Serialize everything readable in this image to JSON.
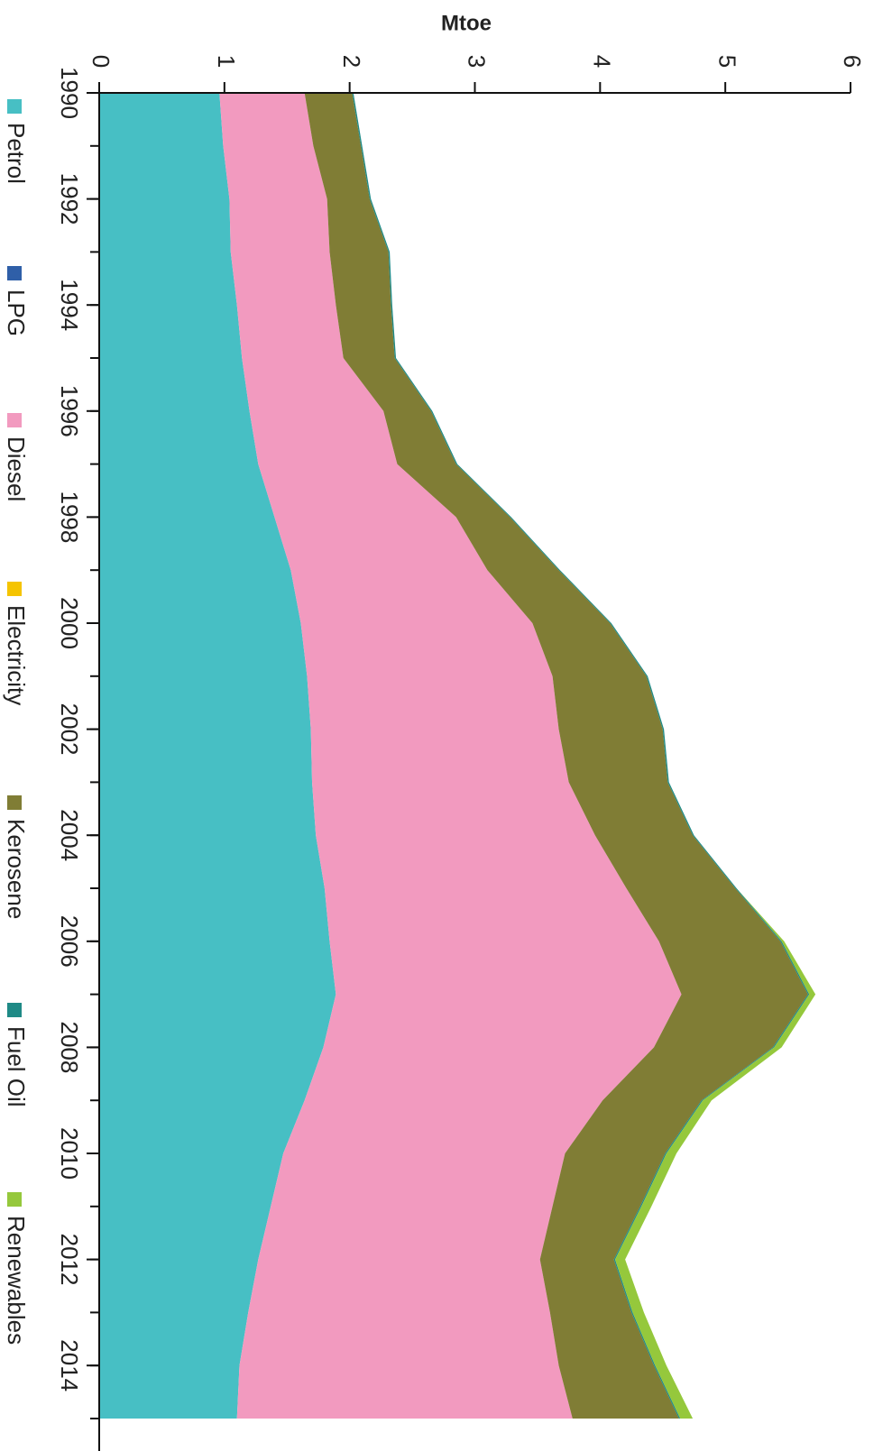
{
  "chart_data": {
    "type": "stacked_area",
    "y_label": "Mtoe",
    "x": [
      1990,
      1991,
      1992,
      1993,
      1994,
      1995,
      1996,
      1997,
      1998,
      1999,
      2000,
      2001,
      2002,
      2003,
      2004,
      2005,
      2006,
      2007,
      2008,
      2009,
      2010,
      2011,
      2012,
      2013,
      2014,
      2015
    ],
    "xlim": [
      1990,
      2015
    ],
    "xticks": [
      1990,
      1992,
      1994,
      1996,
      1998,
      2000,
      2002,
      2004,
      2006,
      2008,
      2010,
      2012,
      2014
    ],
    "ylim": [
      0,
      6
    ],
    "yticks": [
      0,
      1,
      2,
      3,
      4,
      5,
      6
    ],
    "orientation": "rotated",
    "legend": "left",
    "series": [
      {
        "name": "Petrol",
        "color": "#47bfc4",
        "values": [
          0.96,
          0.99,
          1.04,
          1.05,
          1.1,
          1.14,
          1.2,
          1.27,
          1.4,
          1.53,
          1.61,
          1.66,
          1.69,
          1.7,
          1.73,
          1.8,
          1.84,
          1.89,
          1.79,
          1.64,
          1.47,
          1.37,
          1.27,
          1.19,
          1.12,
          1.1
        ]
      },
      {
        "name": "LPG",
        "color": "#2f5fa8",
        "values": [
          0,
          0,
          0,
          0,
          0,
          0,
          0,
          0,
          0,
          0,
          0,
          0,
          0,
          0,
          0,
          0,
          0,
          0,
          0,
          0,
          0,
          0,
          0,
          0,
          0,
          0
        ]
      },
      {
        "name": "Diesel",
        "color": "#f29abf",
        "values": [
          0.68,
          0.72,
          0.78,
          0.79,
          0.79,
          0.81,
          1.07,
          1.11,
          1.45,
          1.57,
          1.85,
          1.96,
          1.98,
          2.05,
          2.23,
          2.41,
          2.63,
          2.76,
          2.64,
          2.38,
          2.25,
          2.25,
          2.25,
          2.41,
          2.55,
          2.68
        ]
      },
      {
        "name": "Electricity",
        "color": "#f5c400",
        "values": [
          0,
          0,
          0,
          0,
          0,
          0,
          0,
          0,
          0,
          0,
          0,
          0,
          0,
          0,
          0,
          0,
          0,
          0,
          0,
          0,
          0,
          0,
          0,
          0,
          0,
          0
        ]
      },
      {
        "name": "Kerosene",
        "color": "#807d35",
        "values": [
          0.38,
          0.38,
          0.34,
          0.47,
          0.44,
          0.41,
          0.38,
          0.47,
          0.43,
          0.57,
          0.62,
          0.75,
          0.83,
          0.79,
          0.78,
          0.87,
          0.97,
          1.01,
          0.95,
          0.79,
          0.8,
          0.7,
          0.59,
          0.65,
          0.76,
          0.85
        ]
      },
      {
        "name": "Fuel Oil",
        "color": "#1f8a86",
        "values": [
          0.01,
          0.01,
          0.01,
          0.01,
          0.01,
          0.01,
          0.01,
          0.01,
          0.01,
          0.01,
          0.01,
          0.01,
          0.01,
          0.01,
          0.01,
          0.01,
          0.01,
          0.01,
          0.01,
          0.01,
          0.01,
          0.01,
          0.01,
          0.01,
          0.01,
          0.01
        ]
      },
      {
        "name": "Renewables",
        "color": "#95c83c",
        "values": [
          0,
          0,
          0,
          0,
          0,
          0,
          0,
          0,
          0,
          0,
          0,
          0,
          0,
          0,
          0,
          0,
          0.02,
          0.05,
          0.06,
          0.07,
          0.08,
          0.08,
          0.08,
          0.09,
          0.09,
          0.1
        ]
      }
    ]
  }
}
